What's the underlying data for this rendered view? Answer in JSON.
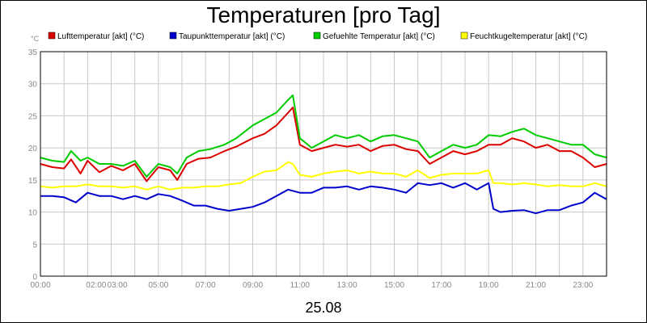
{
  "chart_data": {
    "type": "line",
    "title": "Temperaturen [pro Tag]",
    "yunit": "°C",
    "date_label": "25.08",
    "ylim": [
      0,
      35
    ],
    "yticks": [
      0,
      5,
      10,
      15,
      20,
      25,
      30,
      35
    ],
    "xlim": [
      0,
      24
    ],
    "xticks": [
      {
        "h": 0,
        "label": "00:00"
      },
      {
        "h": 2,
        "label": "02:00"
      },
      {
        "h": 3,
        "label": "03:00"
      },
      {
        "h": 5,
        "label": "05:00"
      },
      {
        "h": 7,
        "label": "07:00"
      },
      {
        "h": 9,
        "label": "09:00"
      },
      {
        "h": 11,
        "label": "11:00"
      },
      {
        "h": 13,
        "label": "13:00"
      },
      {
        "h": 15,
        "label": "15:00"
      },
      {
        "h": 17,
        "label": "17:00"
      },
      {
        "h": 19,
        "label": "19:00"
      },
      {
        "h": 21,
        "label": "21:00"
      },
      {
        "h": 23,
        "label": "23:00"
      }
    ],
    "grid": true,
    "legend_position": "top",
    "series": [
      {
        "name": "Lufttemperatur [akt] (°C)",
        "color": "#dd0000",
        "points": [
          [
            0,
            17.5
          ],
          [
            0.5,
            17
          ],
          [
            1,
            16.8
          ],
          [
            1.3,
            18.2
          ],
          [
            1.7,
            16
          ],
          [
            2,
            18
          ],
          [
            2.5,
            16.2
          ],
          [
            3,
            17.2
          ],
          [
            3.5,
            16.5
          ],
          [
            4,
            17.5
          ],
          [
            4.5,
            14.8
          ],
          [
            5,
            17
          ],
          [
            5.5,
            16.5
          ],
          [
            5.8,
            15
          ],
          [
            6.2,
            17.5
          ],
          [
            6.7,
            18.3
          ],
          [
            7.2,
            18.5
          ],
          [
            7.8,
            19.5
          ],
          [
            8.3,
            20.2
          ],
          [
            9,
            21.5
          ],
          [
            9.5,
            22.2
          ],
          [
            10,
            23.5
          ],
          [
            10.5,
            25.5
          ],
          [
            10.7,
            26.3
          ],
          [
            11,
            20.5
          ],
          [
            11.5,
            19.5
          ],
          [
            12,
            20
          ],
          [
            12.5,
            20.5
          ],
          [
            13,
            20.2
          ],
          [
            13.5,
            20.5
          ],
          [
            14,
            19.5
          ],
          [
            14.5,
            20.3
          ],
          [
            15,
            20.5
          ],
          [
            15.5,
            19.8
          ],
          [
            16,
            19.5
          ],
          [
            16.5,
            17.5
          ],
          [
            17,
            18.5
          ],
          [
            17.5,
            19.5
          ],
          [
            18,
            19
          ],
          [
            18.5,
            19.5
          ],
          [
            19,
            20.5
          ],
          [
            19.5,
            20.5
          ],
          [
            20,
            21.5
          ],
          [
            20.5,
            21
          ],
          [
            21,
            20
          ],
          [
            21.5,
            20.5
          ],
          [
            22,
            19.5
          ],
          [
            22.5,
            19.5
          ],
          [
            23,
            18.5
          ],
          [
            23.5,
            17
          ],
          [
            24,
            17.5
          ]
        ]
      },
      {
        "name": "Taupunkttemperatur [akt] (°C)",
        "color": "#0000cc",
        "points": [
          [
            0,
            12.5
          ],
          [
            0.5,
            12.5
          ],
          [
            1,
            12.3
          ],
          [
            1.5,
            11.5
          ],
          [
            2,
            13
          ],
          [
            2.5,
            12.5
          ],
          [
            3,
            12.5
          ],
          [
            3.5,
            12
          ],
          [
            4,
            12.5
          ],
          [
            4.5,
            12
          ],
          [
            5,
            12.8
          ],
          [
            5.5,
            12.5
          ],
          [
            6,
            11.8
          ],
          [
            6.5,
            11
          ],
          [
            7,
            11
          ],
          [
            7.5,
            10.5
          ],
          [
            8,
            10.2
          ],
          [
            8.5,
            10.5
          ],
          [
            9,
            10.8
          ],
          [
            9.5,
            11.5
          ],
          [
            10,
            12.5
          ],
          [
            10.5,
            13.5
          ],
          [
            11,
            13
          ],
          [
            11.5,
            13
          ],
          [
            12,
            13.8
          ],
          [
            12.5,
            13.8
          ],
          [
            13,
            14
          ],
          [
            13.5,
            13.5
          ],
          [
            14,
            14
          ],
          [
            14.5,
            13.8
          ],
          [
            15,
            13.5
          ],
          [
            15.5,
            13
          ],
          [
            16,
            14.5
          ],
          [
            16.5,
            14.2
          ],
          [
            17,
            14.5
          ],
          [
            17.5,
            13.8
          ],
          [
            18,
            14.5
          ],
          [
            18.5,
            13.5
          ],
          [
            19,
            14.5
          ],
          [
            19.2,
            10.5
          ],
          [
            19.5,
            10
          ],
          [
            20,
            10.2
          ],
          [
            20.5,
            10.3
          ],
          [
            21,
            9.8
          ],
          [
            21.5,
            10.3
          ],
          [
            22,
            10.3
          ],
          [
            22.5,
            11
          ],
          [
            23,
            11.5
          ],
          [
            23.5,
            13
          ],
          [
            24,
            12
          ]
        ]
      },
      {
        "name": "Gefuehlte Temperatur [akt] (°C)",
        "color": "#00cc00",
        "points": [
          [
            0,
            18.5
          ],
          [
            0.5,
            18
          ],
          [
            1,
            17.8
          ],
          [
            1.3,
            19.5
          ],
          [
            1.7,
            18
          ],
          [
            2,
            18.5
          ],
          [
            2.5,
            17.5
          ],
          [
            3,
            17.5
          ],
          [
            3.5,
            17.2
          ],
          [
            4,
            18
          ],
          [
            4.5,
            15.5
          ],
          [
            5,
            17.5
          ],
          [
            5.5,
            17
          ],
          [
            5.8,
            16
          ],
          [
            6.2,
            18.5
          ],
          [
            6.7,
            19.5
          ],
          [
            7.2,
            19.8
          ],
          [
            7.8,
            20.5
          ],
          [
            8.3,
            21.5
          ],
          [
            9,
            23.5
          ],
          [
            9.5,
            24.5
          ],
          [
            10,
            25.5
          ],
          [
            10.5,
            27.5
          ],
          [
            10.7,
            28.2
          ],
          [
            11,
            21.5
          ],
          [
            11.5,
            20
          ],
          [
            12,
            21
          ],
          [
            12.5,
            22
          ],
          [
            13,
            21.5
          ],
          [
            13.5,
            22
          ],
          [
            14,
            21
          ],
          [
            14.5,
            21.8
          ],
          [
            15,
            22
          ],
          [
            15.5,
            21.5
          ],
          [
            16,
            21
          ],
          [
            16.5,
            18.5
          ],
          [
            17,
            19.5
          ],
          [
            17.5,
            20.5
          ],
          [
            18,
            20
          ],
          [
            18.5,
            20.5
          ],
          [
            19,
            22
          ],
          [
            19.5,
            21.8
          ],
          [
            20,
            22.5
          ],
          [
            20.5,
            23
          ],
          [
            21,
            22
          ],
          [
            21.5,
            21.5
          ],
          [
            22,
            21
          ],
          [
            22.5,
            20.5
          ],
          [
            23,
            20.5
          ],
          [
            23.5,
            19
          ],
          [
            24,
            18.5
          ]
        ]
      },
      {
        "name": "Feuchtkugeltemperatur [akt] (°C)",
        "color": "#ffff00",
        "points": [
          [
            0,
            14
          ],
          [
            0.5,
            13.8
          ],
          [
            1,
            14
          ],
          [
            1.5,
            14
          ],
          [
            2,
            14.3
          ],
          [
            2.5,
            14
          ],
          [
            3,
            14
          ],
          [
            3.5,
            13.8
          ],
          [
            4,
            14
          ],
          [
            4.5,
            13.5
          ],
          [
            5,
            14
          ],
          [
            5.5,
            13.5
          ],
          [
            6,
            13.8
          ],
          [
            6.5,
            13.8
          ],
          [
            7,
            14
          ],
          [
            7.5,
            14
          ],
          [
            8,
            14.3
          ],
          [
            8.5,
            14.5
          ],
          [
            9,
            15.5
          ],
          [
            9.5,
            16.3
          ],
          [
            10,
            16.5
          ],
          [
            10.5,
            17.8
          ],
          [
            10.7,
            17.5
          ],
          [
            11,
            15.8
          ],
          [
            11.5,
            15.5
          ],
          [
            12,
            16
          ],
          [
            12.5,
            16.3
          ],
          [
            13,
            16.5
          ],
          [
            13.5,
            16
          ],
          [
            14,
            16.3
          ],
          [
            14.5,
            16
          ],
          [
            15,
            16
          ],
          [
            15.5,
            15.5
          ],
          [
            16,
            16.5
          ],
          [
            16.5,
            15.3
          ],
          [
            17,
            15.8
          ],
          [
            17.5,
            16
          ],
          [
            18,
            16
          ],
          [
            18.5,
            16
          ],
          [
            19,
            16.5
          ],
          [
            19.2,
            14.5
          ],
          [
            19.5,
            14.5
          ],
          [
            20,
            14.3
          ],
          [
            20.5,
            14.5
          ],
          [
            21,
            14.3
          ],
          [
            21.5,
            14
          ],
          [
            22,
            14.2
          ],
          [
            22.5,
            14
          ],
          [
            23,
            14
          ],
          [
            23.5,
            14.5
          ],
          [
            24,
            14
          ]
        ]
      }
    ]
  }
}
